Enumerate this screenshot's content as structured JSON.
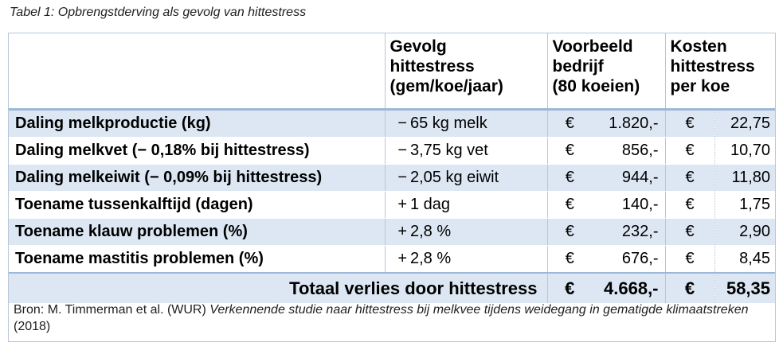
{
  "caption": "Tabel 1: Opbrengstderving als gevolg van hittestress",
  "header": {
    "effect": [
      "Gevolg",
      "hittestress",
      "(gem/koe/jaar)"
    ],
    "example": [
      "Voorbeeld",
      "bedrijf",
      "(80 koeien)"
    ],
    "cost": [
      "Kosten",
      "hittestress",
      "per koe"
    ]
  },
  "rows": [
    {
      "label": "Daling melkproductie (kg)",
      "sign": "−",
      "effect": "65 kg melk",
      "cur1": "€",
      "farm": "1.820,-",
      "cur2": "€",
      "per_cow": "22,75"
    },
    {
      "label": "Daling melkvet (− 0,18% bij hittestress)",
      "sign": "−",
      "effect": "3,75 kg vet",
      "cur1": "€",
      "farm": "856,-",
      "cur2": "€",
      "per_cow": "10,70"
    },
    {
      "label": "Daling melkeiwit (− 0,09% bij hittestress)",
      "sign": "−",
      "effect": "2,05 kg eiwit",
      "cur1": "€",
      "farm": "944,-",
      "cur2": "€",
      "per_cow": "11,80"
    },
    {
      "label": "Toename tussenkalftijd (dagen)",
      "sign": "+",
      "effect": "1 dag",
      "cur1": "€",
      "farm": "140,-",
      "cur2": "€",
      "per_cow": "1,75"
    },
    {
      "label": "Toename klauw problemen (%)",
      "sign": "+",
      "effect": "2,8 %",
      "cur1": "€",
      "farm": "232,-",
      "cur2": "€",
      "per_cow": "2,90"
    },
    {
      "label": "Toename mastitis problemen (%)",
      "sign": "+",
      "effect": "2,8 %",
      "cur1": "€",
      "farm": "676,-",
      "cur2": "€",
      "per_cow": "8,45"
    }
  ],
  "total": {
    "label": "Totaal verlies door hittestress",
    "cur1": "€",
    "farm": "4.668,-",
    "cur2": "€",
    "per_cow": "58,35"
  },
  "source": {
    "prefix": "Bron: M. Timmerman et al. (WUR) ",
    "title": "Verkennende studie naar hittestress bij melkvee tijdens weidegang in gematigde klimaatstreken",
    "suffix": " (2018)"
  },
  "colors": {
    "shade": "#dde7f3",
    "border": "#b7c7da",
    "rule": "#9db7d7"
  }
}
